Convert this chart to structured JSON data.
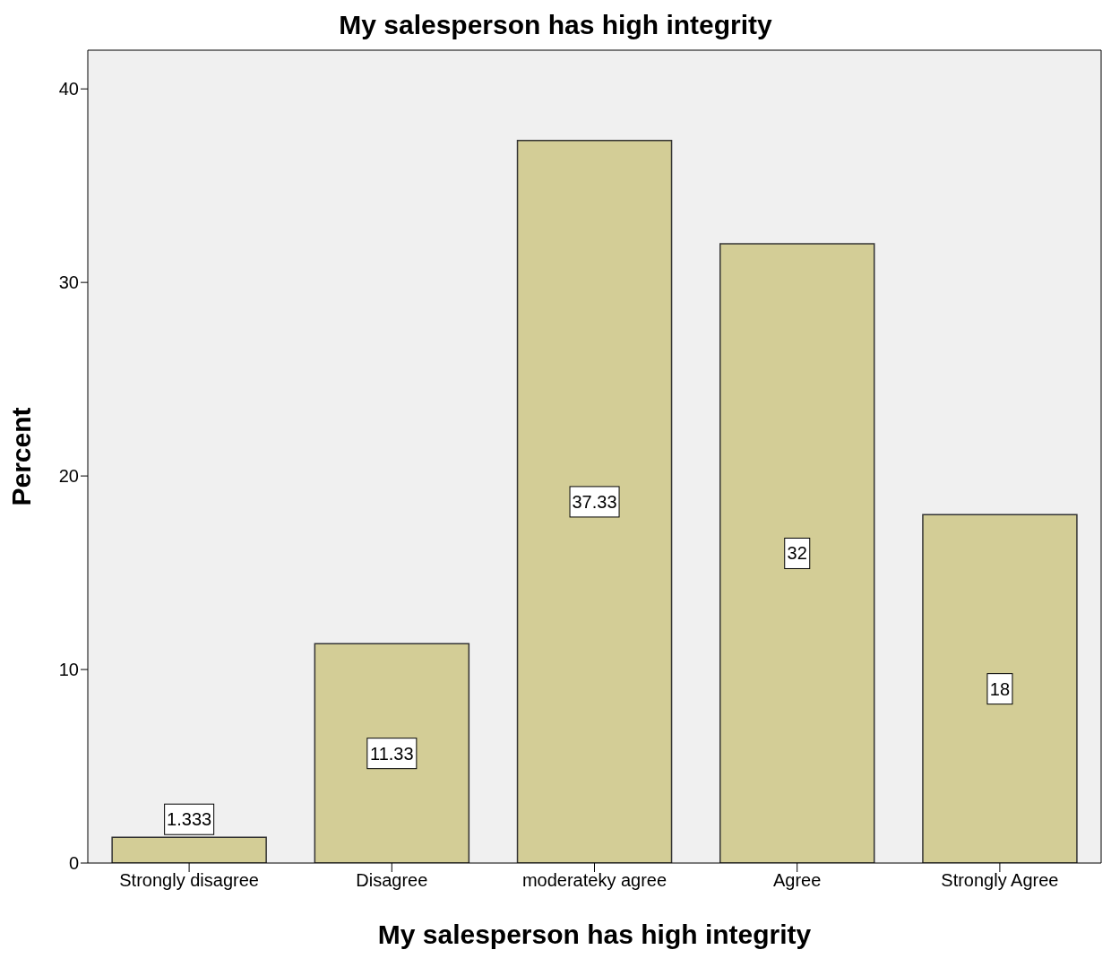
{
  "chart_data": {
    "type": "bar",
    "title": "My salesperson has high integrity",
    "xlabel": "My salesperson has high integrity",
    "ylabel": "Percent",
    "categories": [
      "Strongly disagree",
      "Disagree",
      "moderateky agree",
      "Agree",
      "Strongly Agree"
    ],
    "values": [
      1.333,
      11.33,
      37.33,
      32,
      18
    ],
    "color": "#d3cd96",
    "ylim": [
      0,
      42
    ],
    "yticks": [
      0,
      10,
      20,
      30,
      40
    ],
    "grid": false,
    "data_labels": true
  }
}
